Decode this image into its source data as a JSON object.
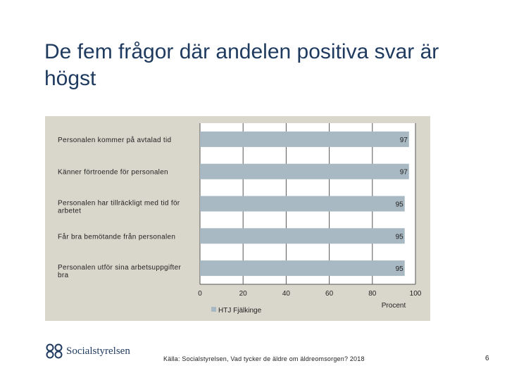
{
  "slide": {
    "title": "De fem frågor där andelen positiva svar är högst",
    "source": "Källa: Socialstyrelsen, Vad tycker de äldre om äldreomsorgen? 2018",
    "page_number": "6",
    "logo_text": "Socialstyrelsen"
  },
  "chart_data": {
    "type": "bar",
    "orientation": "horizontal",
    "categories": [
      [
        "Personalen kommer på avtalad tid"
      ],
      [
        "Känner förtroende för personalen"
      ],
      [
        "Personalen har tillräckligt med tid för",
        "arbetet"
      ],
      [
        "Får bra bemötande från personalen"
      ],
      [
        "Personalen utför sina arbetsuppgifter",
        "bra"
      ]
    ],
    "series": [
      {
        "name": "HTJ Fjälkinge",
        "values": [
          97,
          97,
          95,
          95,
          95
        ]
      }
    ],
    "data_labels": [
      "97",
      "97",
      "95",
      "95",
      "95"
    ],
    "xlabel": "Procent",
    "xlim": [
      0,
      100
    ],
    "xticks": [
      0,
      20,
      40,
      60,
      80,
      100
    ],
    "grid": true,
    "legend": "bottom",
    "colors": {
      "bar": "#a9b9c3",
      "grid": "#555555",
      "plot_bg": "#ffffff",
      "panel_bg": "#d9d7cc"
    }
  }
}
